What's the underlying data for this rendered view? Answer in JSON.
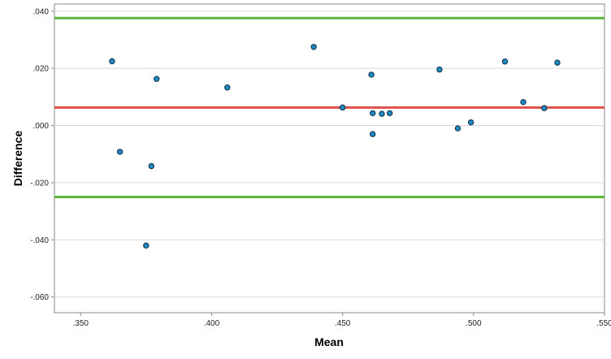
{
  "chart_data": {
    "type": "scatter",
    "title": "",
    "xlabel": "Mean",
    "ylabel": "Difference",
    "xlim": [
      0.34,
      0.55
    ],
    "ylim": [
      -0.0655,
      0.0425
    ],
    "x_ticks": [
      0.35,
      0.4,
      0.45,
      0.5,
      0.55
    ],
    "x_tick_labels": [
      ".350",
      ".400",
      ".450",
      ".500",
      ".550"
    ],
    "y_ticks": [
      0.04,
      0.02,
      0.0,
      -0.02,
      -0.04,
      -0.06
    ],
    "y_tick_labels": [
      ".040",
      ".020",
      ".000",
      "-.020",
      "-.040",
      "-.060"
    ],
    "grid": "horizontal",
    "reference_lines": [
      {
        "y": 0.0376,
        "color": "#5bb53a"
      },
      {
        "y": 0.0063,
        "color": "#e0504a"
      },
      {
        "y": -0.025,
        "color": "#5bb53a"
      }
    ],
    "points": [
      {
        "x": 0.362,
        "y": 0.0225
      },
      {
        "x": 0.365,
        "y": -0.0092
      },
      {
        "x": 0.375,
        "y": -0.042
      },
      {
        "x": 0.377,
        "y": -0.0142
      },
      {
        "x": 0.379,
        "y": 0.0163
      },
      {
        "x": 0.406,
        "y": 0.0133
      },
      {
        "x": 0.439,
        "y": 0.0275
      },
      {
        "x": 0.45,
        "y": 0.0063
      },
      {
        "x": 0.461,
        "y": 0.0178
      },
      {
        "x": 0.4615,
        "y": 0.0043
      },
      {
        "x": 0.4615,
        "y": -0.003
      },
      {
        "x": 0.465,
        "y": 0.0041
      },
      {
        "x": 0.468,
        "y": 0.0043
      },
      {
        "x": 0.487,
        "y": 0.0196
      },
      {
        "x": 0.494,
        "y": -0.001
      },
      {
        "x": 0.499,
        "y": 0.0011
      },
      {
        "x": 0.512,
        "y": 0.0224
      },
      {
        "x": 0.519,
        "y": 0.0082
      },
      {
        "x": 0.527,
        "y": 0.0061
      },
      {
        "x": 0.532,
        "y": 0.022
      }
    ],
    "colors": {
      "point_fill": "#1f8ac0",
      "point_stroke": "#0d2d45",
      "grid": "#d9d9d9",
      "frame": "#8a8a8a"
    }
  }
}
